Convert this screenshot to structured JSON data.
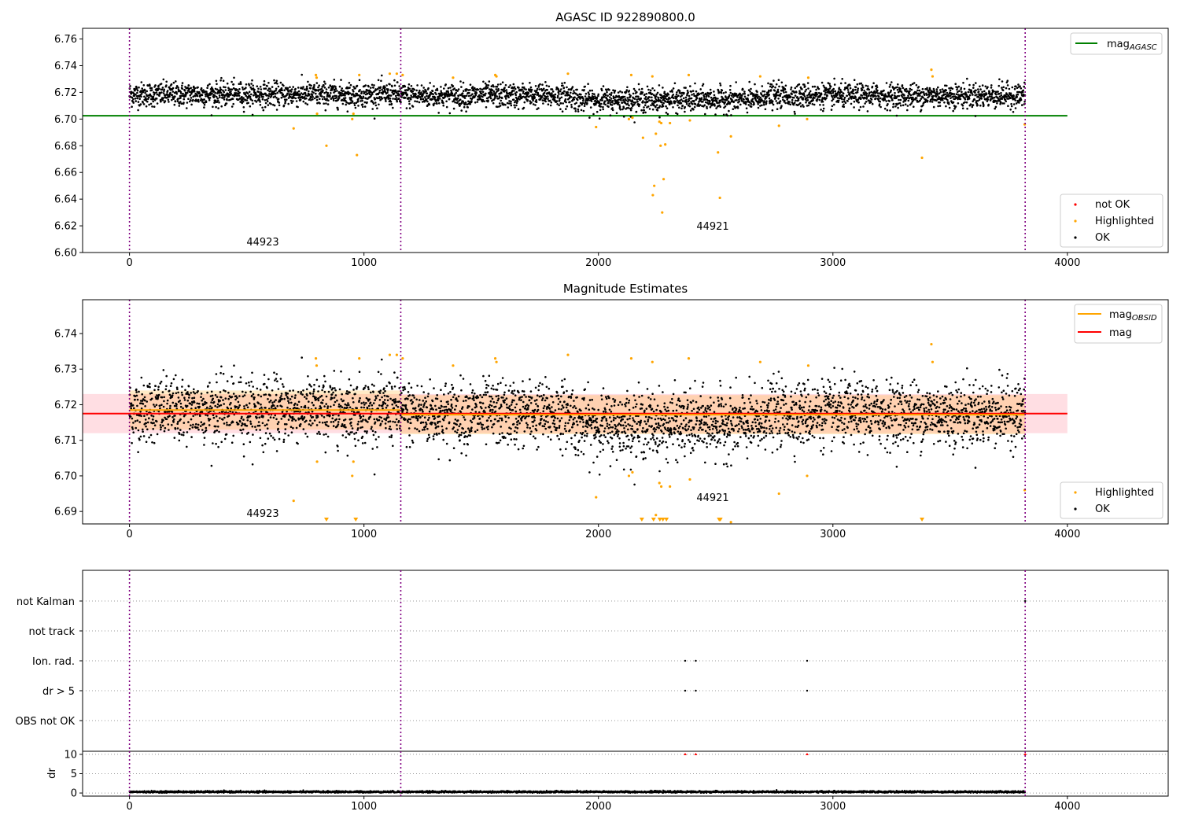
{
  "chart_data": [
    {
      "type": "scatter",
      "title": "AGASC ID 922890800.0",
      "xlabel": "",
      "ylabel": "",
      "xlim": [
        -200,
        4430
      ],
      "ylim": [
        6.6,
        6.768
      ],
      "xticks": [
        "0",
        "1000",
        "2000",
        "3000",
        "4000"
      ],
      "yticks": [
        "6.60",
        "6.62",
        "6.64",
        "6.66",
        "6.68",
        "6.70",
        "6.72",
        "6.74",
        "6.76"
      ],
      "obsid_boundaries": [
        0,
        1157,
        3820
      ],
      "obsid_labels": [
        {
          "text": "44923",
          "x": 580,
          "y": 6.607
        },
        {
          "text": "44921",
          "x": 2490,
          "y": 6.619
        }
      ],
      "lines": [
        {
          "name": "mag_AGASC",
          "value": 6.7025,
          "x": [
            -200,
            4000
          ],
          "color": "#008000"
        }
      ],
      "legend_lines": {
        "mag_base": "mag",
        "mag_sub": "AGASC"
      },
      "legend_points": [
        "not OK",
        "Highlighted",
        "OK"
      ],
      "ok_band": {
        "center": 6.7175,
        "halfwidth": 0.0055
      },
      "n_ok_points": 3820,
      "highlighted": [
        {
          "x": 795,
          "y": 6.733
        },
        {
          "x": 798,
          "y": 6.731
        },
        {
          "x": 700,
          "y": 6.693
        },
        {
          "x": 800,
          "y": 6.704
        },
        {
          "x": 840,
          "y": 6.68
        },
        {
          "x": 950,
          "y": 6.7
        },
        {
          "x": 955,
          "y": 6.704
        },
        {
          "x": 970,
          "y": 6.673
        },
        {
          "x": 980,
          "y": 6.733
        },
        {
          "x": 1110,
          "y": 6.734
        },
        {
          "x": 1140,
          "y": 6.734
        },
        {
          "x": 1165,
          "y": 6.733
        },
        {
          "x": 1380,
          "y": 6.731
        },
        {
          "x": 1560,
          "y": 6.733
        },
        {
          "x": 1565,
          "y": 6.732
        },
        {
          "x": 1870,
          "y": 6.734
        },
        {
          "x": 1990,
          "y": 6.694
        },
        {
          "x": 2130,
          "y": 6.7
        },
        {
          "x": 2140,
          "y": 6.733
        },
        {
          "x": 2145,
          "y": 6.701
        },
        {
          "x": 2190,
          "y": 6.686
        },
        {
          "x": 2230,
          "y": 6.732
        },
        {
          "x": 2232,
          "y": 6.643
        },
        {
          "x": 2238,
          "y": 6.65
        },
        {
          "x": 2245,
          "y": 6.689
        },
        {
          "x": 2260,
          "y": 6.698
        },
        {
          "x": 2265,
          "y": 6.68
        },
        {
          "x": 2268,
          "y": 6.697
        },
        {
          "x": 2272,
          "y": 6.63
        },
        {
          "x": 2278,
          "y": 6.655
        },
        {
          "x": 2285,
          "y": 6.681
        },
        {
          "x": 2305,
          "y": 6.697
        },
        {
          "x": 2385,
          "y": 6.733
        },
        {
          "x": 2390,
          "y": 6.699
        },
        {
          "x": 2510,
          "y": 6.675
        },
        {
          "x": 2518,
          "y": 6.641
        },
        {
          "x": 2565,
          "y": 6.687
        },
        {
          "x": 2690,
          "y": 6.732
        },
        {
          "x": 2770,
          "y": 6.695
        },
        {
          "x": 2890,
          "y": 6.7
        },
        {
          "x": 2895,
          "y": 6.731
        },
        {
          "x": 3380,
          "y": 6.671
        },
        {
          "x": 3420,
          "y": 6.737
        },
        {
          "x": 3425,
          "y": 6.732
        },
        {
          "x": 3818,
          "y": 6.696
        }
      ]
    },
    {
      "type": "scatter",
      "title": "Magnitude Estimates",
      "xlabel": "",
      "ylabel": "",
      "xlim": [
        -200,
        4430
      ],
      "ylim": [
        6.6865,
        6.7495
      ],
      "xticks": [
        "0",
        "1000",
        "2000",
        "3000",
        "4000"
      ],
      "yticks": [
        "6.69",
        "6.70",
        "6.71",
        "6.72",
        "6.73",
        "6.74"
      ],
      "obsid_boundaries": [
        0,
        1157,
        3820
      ],
      "obsid_labels": [
        {
          "text": "44923",
          "x": 580,
          "y": 6.6885
        },
        {
          "text": "44921",
          "x": 2490,
          "y": 6.6935
        }
      ],
      "mag_line": {
        "name": "mag",
        "value": 6.7175,
        "halfwidth": 0.0055,
        "x": [
          -200,
          4000
        ],
        "color": "#ff0000"
      },
      "mag_obsid_segments": [
        {
          "x": [
            0,
            1157
          ],
          "value": 6.7185,
          "halfwidth": 0.0055
        },
        {
          "x": [
            1157,
            3820
          ],
          "value": 6.7172,
          "halfwidth": 0.0055
        }
      ],
      "legend_lines": {
        "obsid_base": "mag",
        "obsid_sub": "OBSID",
        "mag": "mag"
      },
      "legend_points": [
        "Highlighted",
        "OK"
      ],
      "clipped_low_markers": [
        840,
        965,
        2185,
        2235,
        2262,
        2275,
        2290,
        2515,
        2520,
        3380
      ],
      "n_ok_points": 3820
    },
    {
      "type": "scatter",
      "title": "",
      "xlabel": "",
      "ylabel": "",
      "xlim": [
        -200,
        4430
      ],
      "flag_rows": [
        "not Kalman",
        "not track",
        "Ion. rad.",
        "dr > 5",
        "OBS not OK"
      ],
      "flag_points": [
        {
          "row": "not Kalman",
          "x": [
            3820
          ]
        },
        {
          "row": "Ion. rad.",
          "x": [
            2370,
            2415,
            2890
          ]
        },
        {
          "row": "dr > 5",
          "x": [
            2370,
            2415,
            2890
          ]
        }
      ],
      "obsid_boundaries": [
        0,
        1157,
        3820
      ]
    },
    {
      "type": "scatter",
      "title": "",
      "xlabel": "",
      "ylabel": "dr",
      "xlim": [
        -200,
        4430
      ],
      "ylim": [
        -0.8,
        10.8
      ],
      "xticks": [
        "0",
        "1000",
        "2000",
        "3000",
        "4000"
      ],
      "yticks": [
        "0",
        "5",
        "10"
      ],
      "clipped_high_markers": [
        2370,
        2415,
        2890,
        3820
      ],
      "typical_dr": 0.3,
      "n_points": 3820,
      "obsid_boundaries": [
        0,
        1157,
        3820
      ]
    }
  ]
}
